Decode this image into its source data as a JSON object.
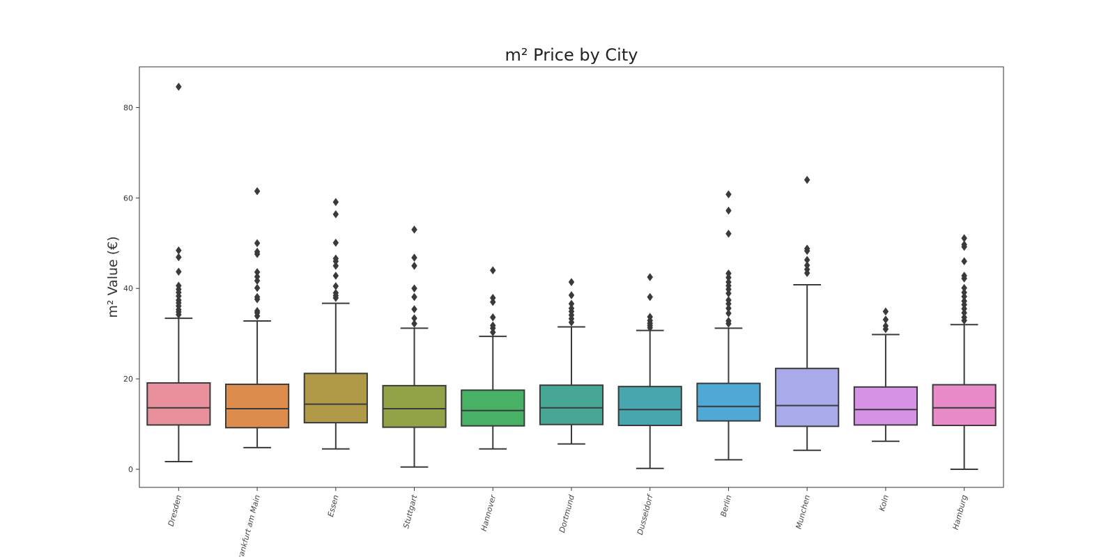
{
  "chart_data": {
    "type": "box",
    "title": "m² Price by City",
    "xlabel": "",
    "ylabel": "m² Value (€)",
    "ylim": [
      -4,
      89
    ],
    "yticks": [
      0,
      20,
      40,
      60,
      80
    ],
    "grid": false,
    "legend": "none",
    "categories": [
      "Dresden",
      "Frankfurt am Main",
      "Essen",
      "Stuttgart",
      "Hannover",
      "Dortmund",
      "Dusseldorf",
      "Berlin",
      "Munchen",
      "Koln",
      "Hamburg"
    ],
    "colors": [
      "#e8919c",
      "#dc8c4d",
      "#b09a48",
      "#91a346",
      "#47b266",
      "#46a894",
      "#48a7ae",
      "#4fa9d4",
      "#a9aae9",
      "#d693e6",
      "#e88bc8"
    ],
    "boxes": [
      {
        "city": "Dresden",
        "whislo": 1.7,
        "q1": 9.8,
        "med": 13.6,
        "q3": 19.1,
        "whishi": 33.4,
        "fliers": [
          34.2,
          34.8,
          35.3,
          36.1,
          36.8,
          37.4,
          38.3,
          39.1,
          39.8,
          40.6,
          43.7,
          46.9,
          48.4,
          84.6
        ]
      },
      {
        "city": "Frankfurt am Main",
        "whislo": 4.8,
        "q1": 9.2,
        "med": 13.4,
        "q3": 18.8,
        "whishi": 32.8,
        "fliers": [
          33.9,
          34.6,
          35.0,
          37.6,
          38.1,
          40.1,
          41.7,
          42.6,
          43.6,
          47.6,
          48.1,
          50.0,
          61.5
        ]
      },
      {
        "city": "Essen",
        "whislo": 4.5,
        "q1": 10.3,
        "med": 14.4,
        "q3": 21.2,
        "whishi": 36.7,
        "fliers": [
          37.9,
          38.4,
          39.0,
          40.5,
          42.8,
          45.0,
          46.0,
          46.6,
          50.1,
          56.4,
          59.1
        ]
      },
      {
        "city": "Stuttgart",
        "whislo": 0.5,
        "q1": 9.3,
        "med": 13.4,
        "q3": 18.5,
        "whishi": 31.2,
        "fliers": [
          32.2,
          33.4,
          35.4,
          38.1,
          40.0,
          45.0,
          46.8,
          53.0
        ]
      },
      {
        "city": "Hannover",
        "whislo": 4.5,
        "q1": 9.6,
        "med": 13.0,
        "q3": 17.5,
        "whishi": 29.4,
        "fliers": [
          30.3,
          31.2,
          31.8,
          33.6,
          37.0,
          37.9,
          44.0
        ]
      },
      {
        "city": "Dortmund",
        "whislo": 5.6,
        "q1": 9.9,
        "med": 13.6,
        "q3": 18.6,
        "whishi": 31.5,
        "fliers": [
          32.5,
          33.3,
          34.1,
          34.9,
          35.6,
          36.6,
          38.5,
          41.4
        ]
      },
      {
        "city": "Dusseldorf",
        "whislo": 0.2,
        "q1": 9.7,
        "med": 13.2,
        "q3": 18.3,
        "whishi": 30.7,
        "fliers": [
          31.3,
          31.8,
          32.3,
          32.9,
          33.7,
          38.1,
          42.5
        ]
      },
      {
        "city": "Berlin",
        "whislo": 2.1,
        "q1": 10.7,
        "med": 13.9,
        "q3": 19.0,
        "whishi": 31.2,
        "fliers": [
          32.2,
          32.8,
          34.5,
          35.6,
          36.6,
          37.4,
          38.9,
          39.8,
          40.6,
          41.4,
          42.4,
          43.3,
          52.1,
          57.2,
          60.8
        ]
      },
      {
        "city": "Munchen",
        "whislo": 4.2,
        "q1": 9.5,
        "med": 14.1,
        "q3": 22.3,
        "whishi": 40.8,
        "fliers": [
          43.4,
          44.2,
          45.1,
          46.3,
          48.3,
          48.8,
          64.0
        ]
      },
      {
        "city": "Koln",
        "whislo": 6.2,
        "q1": 9.8,
        "med": 13.2,
        "q3": 18.2,
        "whishi": 29.8,
        "fliers": [
          31.0,
          31.7,
          33.1,
          34.9
        ]
      },
      {
        "city": "Hamburg",
        "whislo": 0.0,
        "q1": 9.7,
        "med": 13.6,
        "q3": 18.7,
        "whishi": 32.0,
        "fliers": [
          32.9,
          33.6,
          34.6,
          35.5,
          36.4,
          37.2,
          38.2,
          39.1,
          40.1,
          42.2,
          42.8,
          46.0,
          49.2,
          49.7,
          51.1
        ]
      }
    ]
  }
}
